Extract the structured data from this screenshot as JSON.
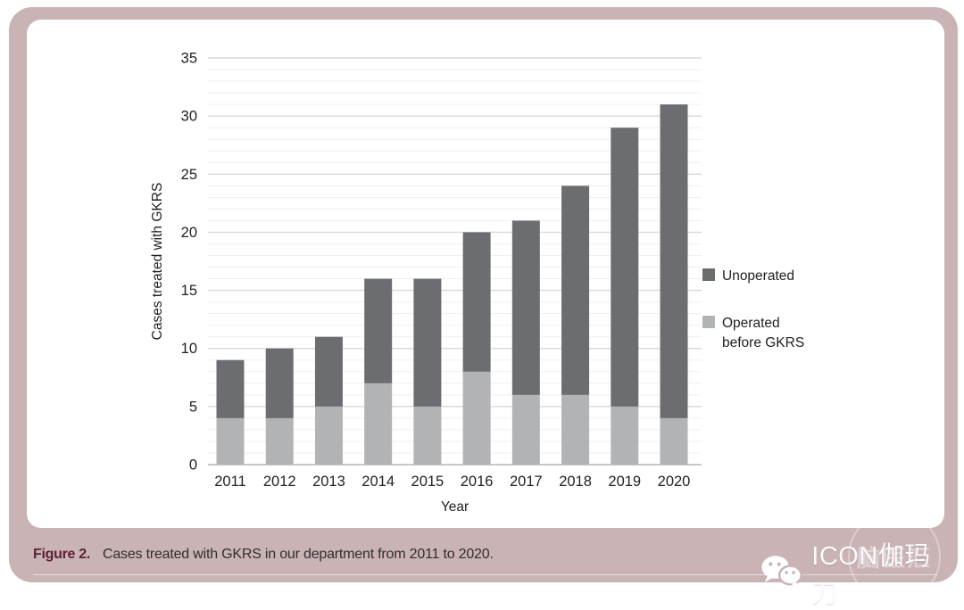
{
  "figure": {
    "caption_label": "Figure 2.",
    "caption_text": "Cases treated with GKRS in our department from 2011 to 2020."
  },
  "watermark": {
    "icon": "wechat-icon",
    "text": "ICON伽玛刀",
    "stamp_text": "脑医汇"
  },
  "colors": {
    "frame_pink": "#c9b3b5",
    "panel_white": "#ffffff",
    "bar_dark": "#6c6d70",
    "bar_light": "#b1b3b5",
    "grid_major": "#d9d9d9",
    "grid_minor": "#efefef",
    "baseline": "#c9c9c9",
    "axis_text": "#232020",
    "caption_label": "#5d2137",
    "caption_text": "#322d2e"
  },
  "chart_data": {
    "type": "bar",
    "stacked": true,
    "title": "",
    "xlabel": "Year",
    "ylabel": "Cases treated with GKRS",
    "categories": [
      "2011",
      "2012",
      "2013",
      "2014",
      "2015",
      "2016",
      "2017",
      "2018",
      "2019",
      "2020"
    ],
    "series": [
      {
        "name": "Operated before GKRS",
        "color": "#b1b3b5",
        "values": [
          4,
          4,
          5,
          7,
          5,
          8,
          6,
          6,
          5,
          4
        ]
      },
      {
        "name": "Unoperated",
        "color": "#6c6d70",
        "values": [
          5,
          6,
          6,
          9,
          11,
          12,
          15,
          18,
          24,
          27
        ]
      }
    ],
    "totals": [
      9,
      10,
      11,
      16,
      16,
      20,
      21,
      24,
      29,
      31
    ],
    "ylim": [
      0,
      35
    ],
    "y_ticks": [
      0,
      5,
      10,
      15,
      20,
      25,
      30,
      35
    ],
    "y_minor_step": 1,
    "grid": true,
    "legend_position": "right",
    "legend": [
      {
        "lines": [
          "Unoperated"
        ],
        "color": "#6c6d70"
      },
      {
        "lines": [
          "Operated",
          "before GKRS"
        ],
        "color": "#b1b3b5"
      }
    ]
  }
}
